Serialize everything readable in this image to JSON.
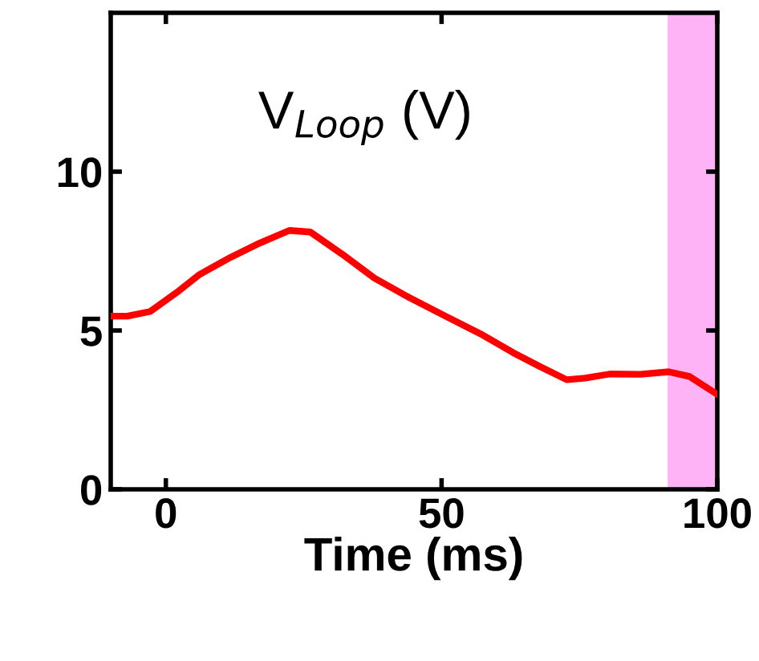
{
  "chart_data": {
    "type": "line",
    "xlabel": "Time (ms)",
    "annotations": [
      "V$_{Loop}$ (V)"
    ],
    "series": [
      {
        "color": "#ff0000",
        "x": [
          -10,
          -7,
          -2.8,
          2,
          6,
          11.7,
          17,
          22.4,
          26.2,
          32,
          37.8,
          44,
          50.5,
          57,
          63,
          68,
          72.7,
          76,
          80.5,
          86,
          91.2,
          95,
          99.9
        ],
        "values": [
          5.45,
          5.45,
          5.6,
          6.2,
          6.75,
          7.3,
          7.75,
          8.15,
          8.1,
          7.4,
          6.65,
          6.05,
          5.47,
          4.9,
          4.3,
          3.85,
          3.45,
          3.5,
          3.63,
          3.62,
          3.7,
          3.55,
          3.0
        ]
      }
    ],
    "xlim": [
      -10,
      100
    ],
    "ylim": [
      0,
      15
    ],
    "xticks": [
      0,
      50,
      100
    ],
    "yticks": [
      0,
      5,
      10
    ],
    "bands": [
      {
        "axis": "x",
        "from": 91,
        "to": 100,
        "color": "#ffb3f7"
      }
    ],
    "grid": false,
    "legend": false
  }
}
